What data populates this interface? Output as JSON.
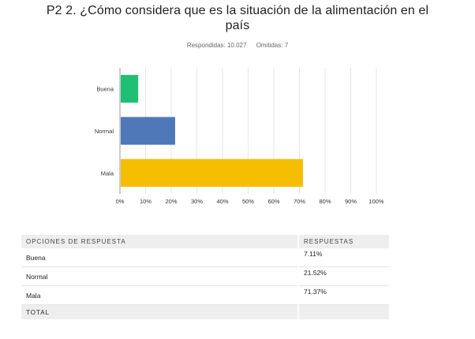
{
  "title_line1": "P2 2. ¿Cómo considera que es la  situación de la alimentación en el",
  "title_line2": "país",
  "respondents": "Respondidas: 10.027",
  "omitted": "Omitidas: 7",
  "chart_data": {
    "type": "bar",
    "orientation": "horizontal",
    "categories": [
      "Buena",
      "Normal",
      "Mala"
    ],
    "values": [
      7.11,
      21.52,
      71.37
    ],
    "colors": [
      "#1fbf74",
      "#4e78b8",
      "#f6be00"
    ],
    "xlim": [
      0,
      100
    ],
    "xticks": [
      "0%",
      "10%",
      "20%",
      "30%",
      "40%",
      "50%",
      "60%",
      "70%",
      "80%",
      "90%",
      "100%"
    ],
    "grid": true
  },
  "table": {
    "headers": [
      "OPCIONES DE RESPUESTA",
      "RESPUESTAS"
    ],
    "rows": [
      {
        "option": "Buena",
        "value": "7.11%"
      },
      {
        "option": "Normal",
        "value": "21.52%"
      },
      {
        "option": "Mala",
        "value": "71.37%"
      }
    ],
    "total_label": "TOTAL",
    "total_value": ""
  }
}
